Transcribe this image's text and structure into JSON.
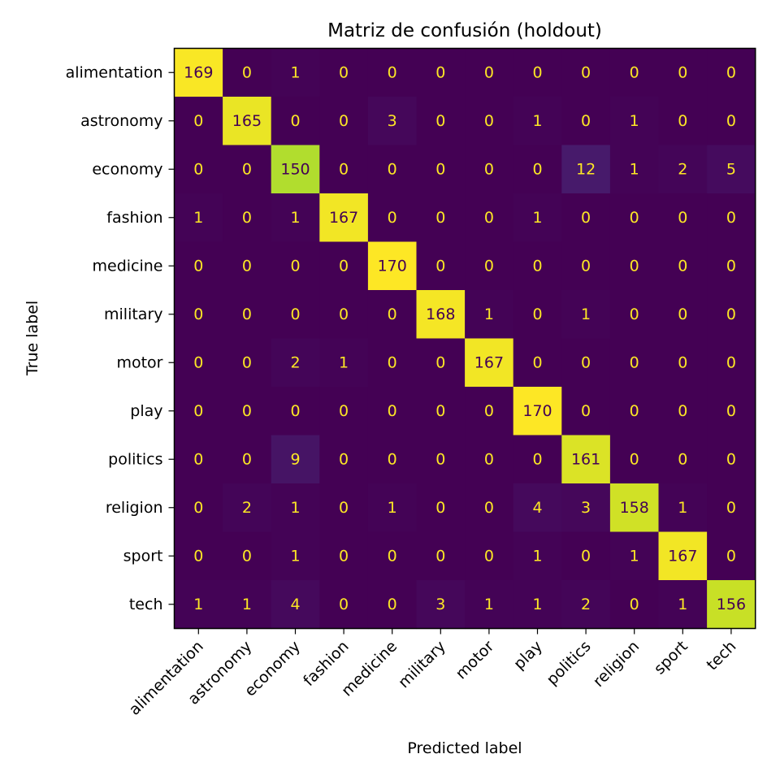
{
  "chart_data": {
    "type": "heatmap",
    "title": "Matriz de confusión (holdout)",
    "xlabel": "Predicted label",
    "ylabel": "True label",
    "colormap": "viridis",
    "value_range": [
      0,
      170
    ],
    "text_color_light": "#fde725",
    "text_color_dark": "#440154",
    "categories": [
      "alimentation",
      "astronomy",
      "economy",
      "fashion",
      "medicine",
      "military",
      "motor",
      "play",
      "politics",
      "religion",
      "sport",
      "tech"
    ],
    "values": [
      [
        169,
        0,
        1,
        0,
        0,
        0,
        0,
        0,
        0,
        0,
        0,
        0
      ],
      [
        0,
        165,
        0,
        0,
        3,
        0,
        0,
        1,
        0,
        1,
        0,
        0
      ],
      [
        0,
        0,
        150,
        0,
        0,
        0,
        0,
        0,
        12,
        1,
        2,
        5
      ],
      [
        1,
        0,
        1,
        167,
        0,
        0,
        0,
        1,
        0,
        0,
        0,
        0
      ],
      [
        0,
        0,
        0,
        0,
        170,
        0,
        0,
        0,
        0,
        0,
        0,
        0
      ],
      [
        0,
        0,
        0,
        0,
        0,
        168,
        1,
        0,
        1,
        0,
        0,
        0
      ],
      [
        0,
        0,
        2,
        1,
        0,
        0,
        167,
        0,
        0,
        0,
        0,
        0
      ],
      [
        0,
        0,
        0,
        0,
        0,
        0,
        0,
        170,
        0,
        0,
        0,
        0
      ],
      [
        0,
        0,
        9,
        0,
        0,
        0,
        0,
        0,
        161,
        0,
        0,
        0
      ],
      [
        0,
        2,
        1,
        0,
        1,
        0,
        0,
        4,
        3,
        158,
        1,
        0
      ],
      [
        0,
        0,
        1,
        0,
        0,
        0,
        0,
        1,
        0,
        1,
        167,
        0
      ],
      [
        1,
        1,
        4,
        0,
        0,
        3,
        1,
        1,
        2,
        0,
        1,
        156
      ]
    ]
  }
}
